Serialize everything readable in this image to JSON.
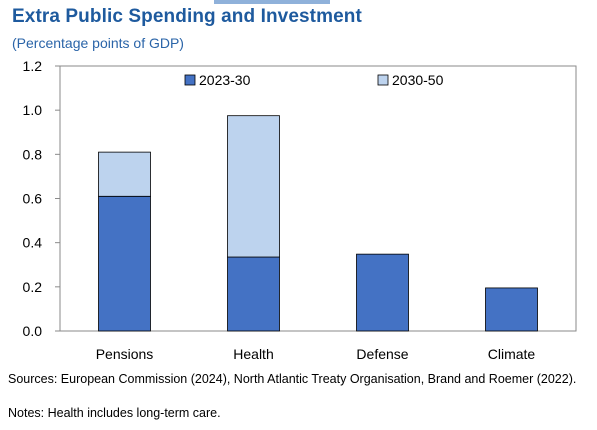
{
  "title": "Extra Public Spending and Investment",
  "subtitle": "(Percentage points of GDP)",
  "sources": "Sources: European Commission (2024), North Atlantic Treaty Organisation, Brand and Roemer (2022).",
  "notes": "Notes: Health includes long-term care.",
  "colors": {
    "series_2023_30": "#4472c4",
    "series_2030_50": "#bdd3ee",
    "title": "#1e5a9e"
  },
  "chart_data": {
    "type": "bar",
    "stacked": true,
    "categories": [
      "Pensions",
      "Health",
      "Defense",
      "Climate"
    ],
    "series": [
      {
        "name": "2023-30",
        "values": [
          0.61,
          0.335,
          0.348,
          0.195
        ]
      },
      {
        "name": "2030-50",
        "values": [
          0.2,
          0.64,
          0,
          0
        ]
      }
    ],
    "ylim": [
      0,
      1.2
    ],
    "yticks": [
      "0.0",
      "0.2",
      "0.4",
      "0.6",
      "0.8",
      "1.0",
      "1.2"
    ],
    "legend": "top",
    "grid": false
  }
}
